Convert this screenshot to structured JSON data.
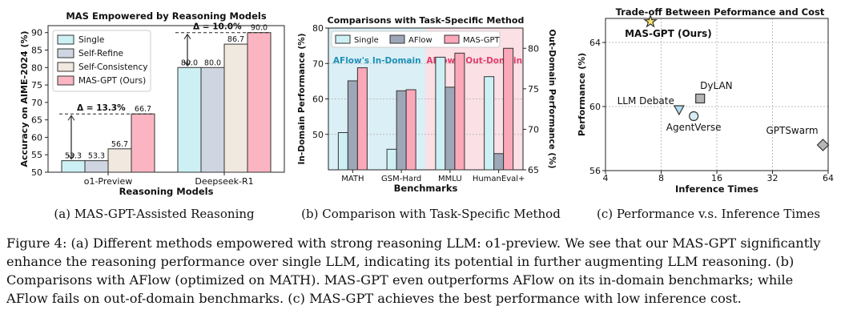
{
  "chart_data": [
    {
      "type": "bar",
      "title": "MAS Empowered by Reasoning Models",
      "xlabel": "Reasoning Models",
      "ylabel": "Accuracy on AIME-2024 (%)",
      "ylim": [
        50,
        92
      ],
      "yticks": [
        "50",
        "55",
        "60",
        "65",
        "70",
        "75",
        "80",
        "85",
        "90"
      ],
      "categories": [
        "o1-Preview",
        "Deepseek-R1"
      ],
      "series": [
        {
          "name": "Single",
          "values": [
            53.3,
            80.0
          ],
          "labels": [
            "53.3",
            "80.0"
          ],
          "color": "#cdf0f5"
        },
        {
          "name": "Self-Refine",
          "values": [
            53.3,
            80.0
          ],
          "labels": [
            "53.3",
            "80.0"
          ],
          "color": "#cfd6e1"
        },
        {
          "name": "Self-Consistency",
          "values": [
            56.7,
            86.7
          ],
          "labels": [
            "56.7",
            "86.7"
          ],
          "color": "#f1e8df"
        },
        {
          "name": "MAS-GPT (Ours)",
          "values": [
            66.7,
            90.0
          ],
          "labels": [
            "66.7",
            "90.0"
          ],
          "color": "#fbb5c2"
        }
      ],
      "annotations": [
        "Δ = 13.3%",
        "Δ = 10.0%"
      ],
      "legend": "top-left",
      "grid": false
    },
    {
      "type": "bar",
      "title": "Comparisons with Task-Specific Method",
      "xlabel": "Benchmarks",
      "ylabel": "In-Domain Performance (%)",
      "ylabel_right": "Out-Domain Performance (%)",
      "ylim": [
        40,
        80
      ],
      "ylim_right": [
        65,
        82.5
      ],
      "yticks": [
        "50",
        "60",
        "70",
        "80"
      ],
      "yticks_right": [
        "65",
        "70",
        "75",
        "80"
      ],
      "categories": [
        "MATH",
        "GSM-Hard",
        "MMLU",
        "HumanEval+"
      ],
      "series": [
        {
          "name": "Single",
          "values": [
            50.5,
            45.8,
            78.9,
            76.5
          ],
          "color": "#cdf0f5"
        },
        {
          "name": "AFlow",
          "values": [
            65.1,
            62.3,
            75.2,
            67.0
          ],
          "color": "#9ea7b7"
        },
        {
          "name": "MAS-GPT",
          "values": [
            68.8,
            62.6,
            79.4,
            80.0
          ],
          "color": "#fba8b9"
        }
      ],
      "axis_assignment": [
        "left",
        "left",
        "right",
        "right"
      ],
      "regions": [
        "AFlow's In-Domain",
        "AFlow's Out-Domain"
      ],
      "legend": "top",
      "grid": true
    },
    {
      "type": "scatter",
      "title": "Trade-off Between Peformance and Cost",
      "xlabel": "Inference Times",
      "ylabel": "Performance (%)",
      "xscale": "log2",
      "xlim": [
        4,
        64
      ],
      "ylim": [
        56,
        65.5
      ],
      "xticks": [
        "4",
        "8",
        "16",
        "32",
        "64"
      ],
      "yticks": [
        "56",
        "60",
        "64"
      ],
      "points": [
        {
          "label": "MAS-GPT (Ours)",
          "x": 7,
          "y": 65.3,
          "marker": "star",
          "color": "#fce76b"
        },
        {
          "label": "LLM Debate",
          "x": 10,
          "y": 59.8,
          "marker": "triangle",
          "color": "#b3dcef"
        },
        {
          "label": "DyLAN",
          "x": 13,
          "y": 60.5,
          "marker": "square",
          "color": "#b5b5b5"
        },
        {
          "label": "AgentVerse",
          "x": 12,
          "y": 59.4,
          "marker": "circle",
          "color": "#d7edf3"
        },
        {
          "label": "GPTSwarm",
          "x": 60,
          "y": 57.6,
          "marker": "diamond",
          "color": "#b5b5b5"
        }
      ],
      "grid": true
    }
  ],
  "subcaptions": [
    "(a)  MAS-GPT-Assisted Reasoning",
    "(b)  Comparison with Task-Specific Method",
    "(c)  Performance v.s. Inference Times"
  ],
  "figure_caption": [
    "Figure 4: (a) Different methods empowered with strong reasoning LLM: o1-preview. We see that our MAS-GPT significantly",
    "enhance the reasoning performance over single LLM, indicating its potential in further augmenting LLM reasoning. (b)",
    "Comparisons with AFlow (optimized on MATH). MAS-GPT even outperforms AFlow on its in-domain benchmarks; while",
    "AFlow fails on out-of-domain benchmarks. (c) MAS-GPT achieves the best performance with low inference cost."
  ]
}
